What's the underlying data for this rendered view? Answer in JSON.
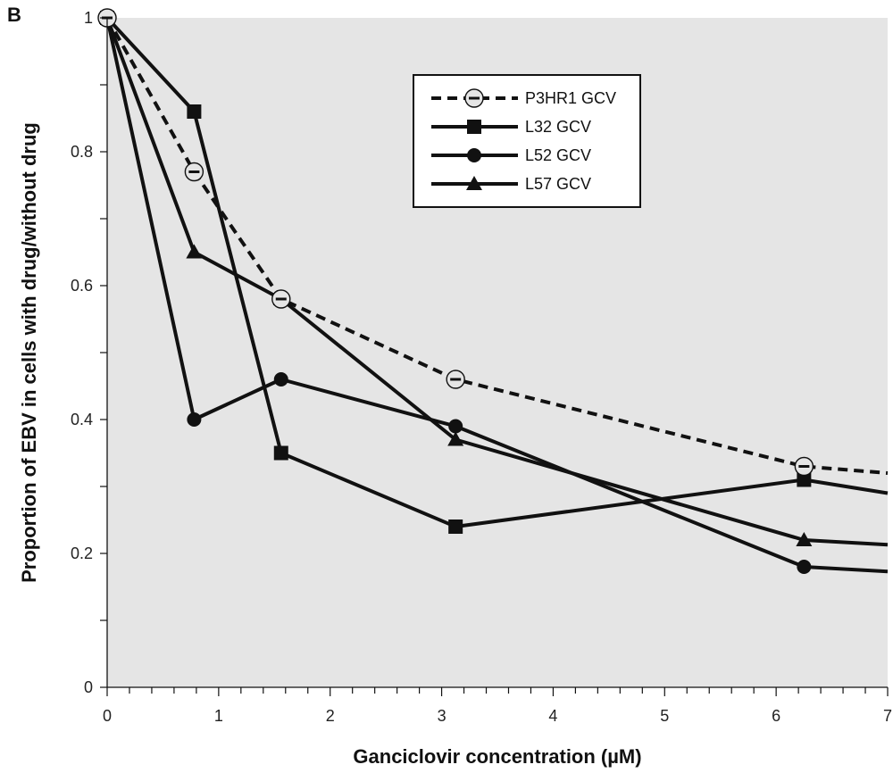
{
  "panel_label": "B",
  "chart_data": {
    "type": "line",
    "xlabel": "Ganciclovir concentration (µM)",
    "ylabel": "Proportion of EBV in cells with drug/without drug",
    "xlim": [
      0,
      7
    ],
    "ylim": [
      0,
      1
    ],
    "x_ticks": [
      0,
      1,
      2,
      3,
      4,
      5,
      6,
      7
    ],
    "x_tick_labels": [
      "0",
      "1",
      "2",
      "3",
      "4",
      "5",
      "6",
      "7"
    ],
    "y_ticks": [
      0,
      0.2,
      0.4,
      0.6,
      0.8,
      1
    ],
    "y_tick_labels": [
      "0",
      "0.2",
      "0.4",
      "0.6",
      "0.8",
      "1"
    ],
    "grid": false,
    "legend_position": "top-right",
    "background": "#e5e5e5",
    "series": [
      {
        "name": "P3HR1 GCV",
        "marker": "open-circle-dash",
        "line": "dashed",
        "color": "#111111",
        "points": [
          [
            0,
            1
          ],
          [
            0.78,
            0.77
          ],
          [
            1.56,
            0.58
          ],
          [
            3.125,
            0.46
          ],
          [
            6.25,
            0.33
          ]
        ],
        "curve_tail": [
          [
            7,
            0.32
          ]
        ]
      },
      {
        "name": "L32 GCV",
        "marker": "square",
        "line": "solid",
        "color": "#111111",
        "points": [
          [
            0,
            1
          ],
          [
            0.78,
            0.86
          ],
          [
            1.56,
            0.35
          ],
          [
            3.125,
            0.24
          ],
          [
            6.25,
            0.31
          ]
        ],
        "curve_tail": [
          [
            7,
            0.29
          ]
        ]
      },
      {
        "name": "L52 GCV",
        "marker": "circle",
        "line": "solid",
        "color": "#111111",
        "points": [
          [
            0,
            1
          ],
          [
            0.78,
            0.4
          ],
          [
            1.56,
            0.46
          ],
          [
            3.125,
            0.39
          ],
          [
            6.25,
            0.18
          ]
        ],
        "curve_tail": [
          [
            7,
            0.173
          ]
        ]
      },
      {
        "name": "L57 GCV",
        "marker": "triangle",
        "line": "solid",
        "color": "#111111",
        "points": [
          [
            0,
            1
          ],
          [
            0.78,
            0.65
          ],
          [
            1.56,
            0.58
          ],
          [
            3.125,
            0.37
          ],
          [
            6.25,
            0.22
          ]
        ],
        "curve_tail": [
          [
            7,
            0.213
          ]
        ]
      }
    ]
  }
}
